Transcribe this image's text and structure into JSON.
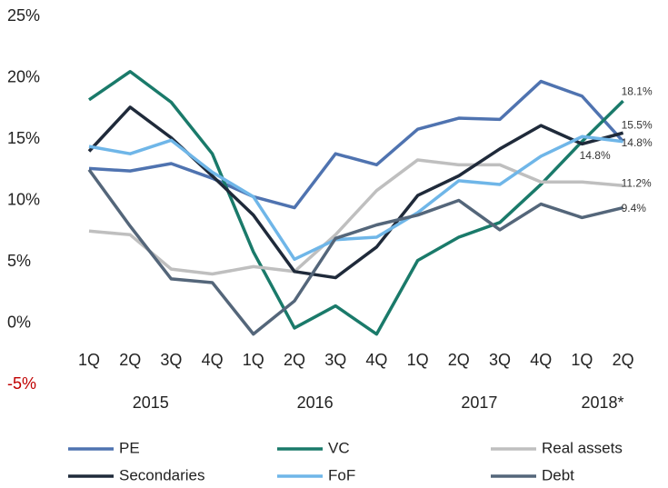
{
  "chart_data": {
    "type": "line",
    "categories": [
      "1Q",
      "2Q",
      "3Q",
      "4Q",
      "1Q",
      "2Q",
      "3Q",
      "4Q",
      "1Q",
      "2Q",
      "3Q",
      "4Q",
      "1Q",
      "2Q"
    ],
    "x_groups": [
      "2015",
      "2016",
      "2017",
      "2018*"
    ],
    "ylim": [
      -5,
      25
    ],
    "yticks": [
      {
        "value": -5,
        "label": "-5%"
      },
      {
        "value": 0,
        "label": "0%"
      },
      {
        "value": 5,
        "label": "5%"
      },
      {
        "value": 10,
        "label": "10%"
      },
      {
        "value": 15,
        "label": "15%"
      },
      {
        "value": 20,
        "label": "20%"
      },
      {
        "value": 25,
        "label": "25%"
      }
    ],
    "negative_tick_color": "#c00000",
    "grid": false,
    "legend": "bottom",
    "series": [
      {
        "name": "PE",
        "color": "#4f73b0",
        "values": [
          12.6,
          12.4,
          13.0,
          11.8,
          10.3,
          9.4,
          13.8,
          12.9,
          15.8,
          16.7,
          16.6,
          19.7,
          18.5,
          14.8
        ],
        "value_labels": [
          null,
          null,
          null,
          null,
          null,
          null,
          null,
          null,
          null,
          null,
          null,
          null,
          null,
          "14.8%"
        ]
      },
      {
        "name": "VC",
        "color": "#1a7a6a",
        "values": [
          18.2,
          20.5,
          18.0,
          13.8,
          5.8,
          -0.4,
          1.4,
          -0.9,
          5.1,
          7.0,
          8.2,
          11.3,
          14.8,
          18.1
        ],
        "value_labels": [
          null,
          null,
          null,
          null,
          null,
          null,
          null,
          null,
          null,
          null,
          null,
          null,
          null,
          "18.1%"
        ]
      },
      {
        "name": "Real assets",
        "color": "#bfbfbf",
        "values": [
          7.5,
          7.2,
          4.4,
          4.0,
          4.6,
          4.2,
          7.2,
          10.8,
          13.3,
          12.9,
          12.9,
          11.5,
          11.5,
          11.2
        ],
        "value_labels": [
          null,
          null,
          null,
          null,
          null,
          null,
          null,
          null,
          null,
          null,
          null,
          null,
          null,
          "11.2%"
        ]
      },
      {
        "name": "Secondaries",
        "color": "#1f2a3a",
        "values": [
          14.0,
          17.6,
          15.1,
          12.0,
          8.8,
          4.2,
          3.7,
          6.2,
          10.4,
          12.0,
          14.2,
          16.1,
          14.6,
          15.5
        ],
        "value_labels": [
          null,
          null,
          null,
          null,
          null,
          null,
          null,
          null,
          null,
          null,
          null,
          null,
          null,
          "15.5%"
        ]
      },
      {
        "name": "FoF",
        "color": "#6fb6e8",
        "values": [
          14.4,
          13.8,
          14.9,
          12.3,
          10.3,
          5.2,
          6.8,
          7.0,
          9.0,
          11.6,
          11.3,
          13.6,
          15.2,
          14.8
        ],
        "value_labels": [
          null,
          null,
          null,
          null,
          null,
          null,
          null,
          null,
          null,
          null,
          null,
          null,
          null,
          "14.8%"
        ]
      },
      {
        "name": "Debt",
        "color": "#54667a",
        "values": [
          12.5,
          7.9,
          3.6,
          3.3,
          -0.9,
          1.8,
          6.9,
          8.0,
          8.8,
          10.0,
          7.6,
          9.7,
          8.6,
          9.4
        ],
        "value_labels": [
          null,
          null,
          null,
          null,
          null,
          null,
          null,
          null,
          null,
          null,
          null,
          null,
          null,
          "9.4%"
        ]
      }
    ]
  }
}
